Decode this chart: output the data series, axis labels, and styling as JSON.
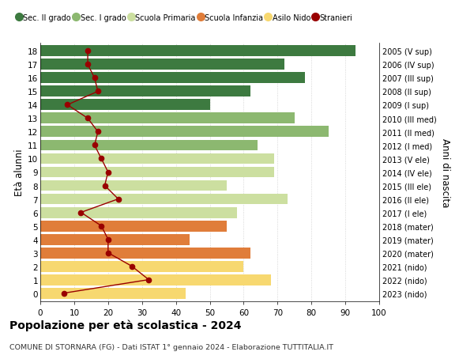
{
  "ages": [
    0,
    1,
    2,
    3,
    4,
    5,
    6,
    7,
    8,
    9,
    10,
    11,
    12,
    13,
    14,
    15,
    16,
    17,
    18
  ],
  "bar_values": [
    43,
    68,
    60,
    62,
    44,
    55,
    58,
    73,
    55,
    69,
    69,
    64,
    85,
    75,
    50,
    62,
    78,
    72,
    93
  ],
  "stranieri": [
    7,
    32,
    27,
    20,
    20,
    18,
    12,
    23,
    19,
    20,
    18,
    16,
    17,
    14,
    8,
    17,
    16,
    14,
    14
  ],
  "right_labels": [
    "2023 (nido)",
    "2022 (nido)",
    "2021 (nido)",
    "2020 (mater)",
    "2019 (mater)",
    "2018 (mater)",
    "2017 (I ele)",
    "2016 (II ele)",
    "2015 (III ele)",
    "2014 (IV ele)",
    "2013 (V ele)",
    "2012 (I med)",
    "2011 (II med)",
    "2010 (III med)",
    "2009 (I sup)",
    "2008 (II sup)",
    "2007 (III sup)",
    "2006 (IV sup)",
    "2005 (V sup)"
  ],
  "bar_colors": [
    "#f7d870",
    "#f7d870",
    "#f7d870",
    "#e07d3a",
    "#e07d3a",
    "#e07d3a",
    "#ccdfa0",
    "#ccdfa0",
    "#ccdfa0",
    "#ccdfa0",
    "#ccdfa0",
    "#8cb870",
    "#8cb870",
    "#8cb870",
    "#3d7a40",
    "#3d7a40",
    "#3d7a40",
    "#3d7a40",
    "#3d7a40"
  ],
  "sec2_color": "#3d7a40",
  "sec1_color": "#8cb870",
  "prim_color": "#ccdfa0",
  "inf_color": "#e07d3a",
  "nido_color": "#f7d870",
  "stranieri_color": "#990000",
  "legend_labels": [
    "Sec. II grado",
    "Sec. I grado",
    "Scuola Primaria",
    "Scuola Infanzia",
    "Asilo Nido",
    "Stranieri"
  ],
  "title": "Popolazione per età scolastica - 2024",
  "subtitle": "COMUNE DI STORNARA (FG) - Dati ISTAT 1° gennaio 2024 - Elaborazione TUTTITALIA.IT",
  "ylabel": "Età alunni",
  "right_ylabel": "Anni di nascita",
  "xlim": [
    0,
    100
  ],
  "xticks": [
    0,
    10,
    20,
    30,
    40,
    50,
    60,
    70,
    80,
    90,
    100
  ],
  "bg_color": "#ffffff",
  "grid_color": "#cccccc"
}
